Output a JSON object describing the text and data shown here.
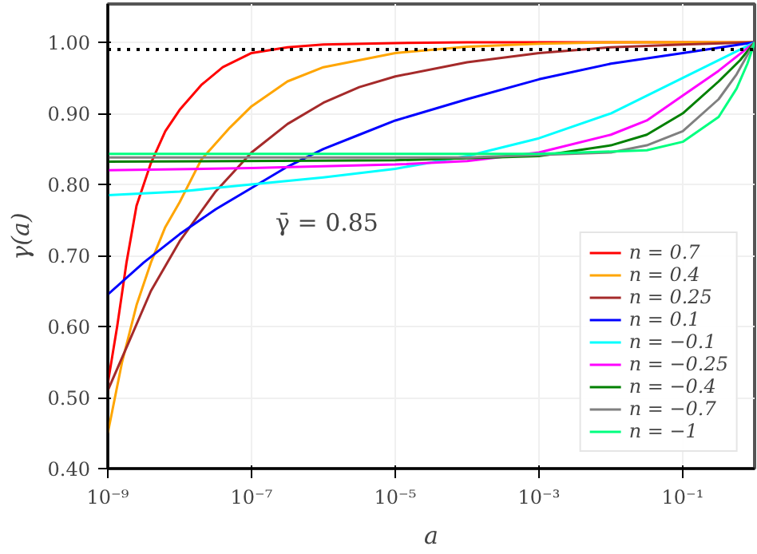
{
  "chart_data": {
    "type": "line",
    "xlabel": "a",
    "ylabel": "γ(a)",
    "log": "x",
    "grid": true,
    "legend": "bottom right",
    "line_style": "solid",
    "xlim": [
      1e-09,
      1
    ],
    "ylim": [
      0.4,
      1.054
    ],
    "xticks": [
      {
        "value": 1e-09,
        "label": "10⁻⁹"
      },
      {
        "value": 1e-07,
        "label": "10⁻⁷"
      },
      {
        "value": 1e-05,
        "label": "10⁻⁵"
      },
      {
        "value": 0.001,
        "label": "10⁻³"
      },
      {
        "value": 0.1,
        "label": "10⁻¹"
      }
    ],
    "yticks": [
      {
        "value": 0.4,
        "label": "0.40"
      },
      {
        "value": 0.5,
        "label": "0.50"
      },
      {
        "value": 0.6,
        "label": "0.60"
      },
      {
        "value": 0.7,
        "label": "0.70"
      },
      {
        "value": 0.8,
        "label": "0.80"
      },
      {
        "value": 0.9,
        "label": "0.90"
      },
      {
        "value": 1.0,
        "label": "1.00"
      }
    ],
    "ref_lines": [
      {
        "axis": "y",
        "value": 0.99,
        "color": "#000000",
        "line_style": "dotted"
      }
    ],
    "annotations": [
      "γ̄ = 0.85"
    ],
    "series": [
      {
        "name": "n = 0.7",
        "color": "#ff0000",
        "x": [
          1e-09,
          1.35e-09,
          1.82e-09,
          2.51e-09,
          3.98e-09,
          6.31e-09,
          1e-08,
          2e-08,
          3.98e-08,
          1e-07,
          3.16e-07,
          1e-06,
          1e-05,
          0.0001,
          0.001,
          0.01,
          0.1,
          1
        ],
        "values": [
          0.52,
          0.6,
          0.69,
          0.77,
          0.83,
          0.875,
          0.905,
          0.94,
          0.965,
          0.985,
          0.993,
          0.997,
          0.999,
          1.0,
          1.0,
          1.0,
          1.0,
          1.0
        ]
      },
      {
        "name": "n = 0.4",
        "color": "#ffa500",
        "x": [
          1e-09,
          1.58e-09,
          2.51e-09,
          3.98e-09,
          6.31e-09,
          1e-08,
          2e-08,
          5e-08,
          1e-07,
          3.16e-07,
          1e-06,
          1e-05,
          0.0001,
          0.001,
          0.01,
          0.1,
          1
        ],
        "values": [
          0.45,
          0.55,
          0.63,
          0.69,
          0.74,
          0.775,
          0.835,
          0.88,
          0.91,
          0.945,
          0.965,
          0.985,
          0.994,
          0.998,
          1.0,
          1.0,
          1.0
        ]
      },
      {
        "name": "n = 0.25",
        "color": "#a52a2a",
        "x": [
          1e-09,
          2e-09,
          3.98e-09,
          1e-08,
          3.16e-08,
          1e-07,
          3.16e-07,
          1e-06,
          3.16e-06,
          1e-05,
          0.0001,
          0.001,
          0.01,
          0.1,
          1
        ],
        "values": [
          0.51,
          0.58,
          0.65,
          0.72,
          0.79,
          0.845,
          0.885,
          0.915,
          0.937,
          0.952,
          0.972,
          0.985,
          0.993,
          0.997,
          1.0
        ]
      },
      {
        "name": "n = 0.1",
        "color": "#0000ff",
        "x": [
          1e-09,
          3.16e-09,
          1e-08,
          3.16e-08,
          1e-07,
          3.16e-07,
          1e-06,
          3.16e-06,
          1e-05,
          0.0001,
          0.001,
          0.01,
          0.1,
          1
        ],
        "values": [
          0.645,
          0.69,
          0.73,
          0.765,
          0.795,
          0.825,
          0.85,
          0.87,
          0.89,
          0.92,
          0.948,
          0.97,
          0.985,
          1.0
        ]
      },
      {
        "name": "n = −0.1",
        "color": "#00ffff",
        "x": [
          1e-09,
          1e-08,
          1e-07,
          1e-06,
          1e-05,
          0.0001,
          0.001,
          0.01,
          0.1,
          0.316,
          1
        ],
        "values": [
          0.785,
          0.79,
          0.8,
          0.81,
          0.822,
          0.84,
          0.865,
          0.9,
          0.95,
          0.975,
          1.0
        ]
      },
      {
        "name": "n = −0.25",
        "color": "#ff00ff",
        "x": [
          1e-09,
          1e-07,
          1e-05,
          0.0001,
          0.001,
          0.01,
          0.0316,
          0.1,
          0.316,
          1
        ],
        "values": [
          0.82,
          0.823,
          0.828,
          0.833,
          0.845,
          0.87,
          0.89,
          0.925,
          0.96,
          1.0
        ]
      },
      {
        "name": "n = −0.4",
        "color": "#008000",
        "x": [
          1e-09,
          1e-05,
          0.001,
          0.01,
          0.0316,
          0.1,
          0.316,
          0.631,
          1
        ],
        "values": [
          0.832,
          0.834,
          0.84,
          0.855,
          0.87,
          0.9,
          0.945,
          0.975,
          1.0
        ]
      },
      {
        "name": "n = −0.7",
        "color": "#808080",
        "x": [
          1e-09,
          0.0001,
          0.01,
          0.0316,
          0.1,
          0.316,
          0.562,
          1
        ],
        "values": [
          0.838,
          0.838,
          0.845,
          0.855,
          0.875,
          0.92,
          0.955,
          1.0
        ]
      },
      {
        "name": "n = −1",
        "color": "#00ff7f",
        "x": [
          1e-09,
          0.001,
          0.0316,
          0.1,
          0.316,
          0.562,
          0.794,
          1
        ],
        "values": [
          0.843,
          0.843,
          0.848,
          0.86,
          0.895,
          0.935,
          0.97,
          1.0
        ]
      }
    ]
  }
}
